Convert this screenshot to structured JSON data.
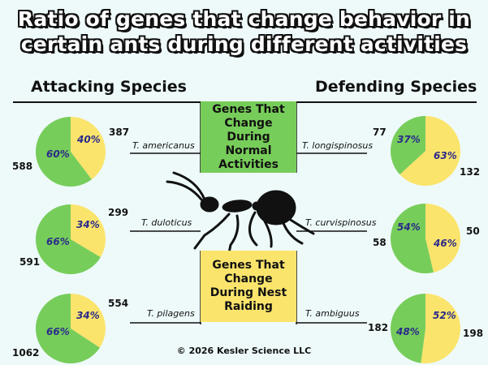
{
  "title_line1": "Ratio of genes that change behavior in",
  "title_line2": "certain ants during different activities",
  "attacking_title": "Attacking Species",
  "defending_title": "Defending Species",
  "box_green_label": "Genes That Change During Normal Activities",
  "box_yellow_label": "Genes That Change During Nest Raiding",
  "footer": "© 2026 Kesler Science LLC",
  "colors": {
    "normal": "#77cd5a",
    "raiding": "#fbe46c",
    "percent_text": "#2a2a8a"
  },
  "chart_data": [
    {
      "type": "pie",
      "group": "Attacking Species",
      "species": "T. americanus",
      "slices": [
        {
          "category": "Genes That Change During Normal Activities",
          "value": 588,
          "percent_label": "60%"
        },
        {
          "category": "Genes That Change During Nest Raiding",
          "value": 387,
          "percent_label": "40%"
        }
      ]
    },
    {
      "type": "pie",
      "group": "Attacking Species",
      "species": "T. duloticus",
      "slices": [
        {
          "category": "Genes That Change During Normal Activities",
          "value": 591,
          "percent_label": "66%"
        },
        {
          "category": "Genes That Change During Nest Raiding",
          "value": 299,
          "percent_label": "34%"
        }
      ]
    },
    {
      "type": "pie",
      "group": "Attacking Species",
      "species": "T. pilagens",
      "slices": [
        {
          "category": "Genes That Change During Normal Activities",
          "value": 1062,
          "percent_label": "66%"
        },
        {
          "category": "Genes That Change During Nest Raiding",
          "value": 554,
          "percent_label": "34%"
        }
      ]
    },
    {
      "type": "pie",
      "group": "Defending Species",
      "species": "T. longispinosus",
      "slices": [
        {
          "category": "Genes That Change During Normal Activities",
          "value": 77,
          "percent_label": "37%"
        },
        {
          "category": "Genes That Change During Nest Raiding",
          "value": 132,
          "percent_label": "63%"
        }
      ]
    },
    {
      "type": "pie",
      "group": "Defending Species",
      "species": "T. curvispinosus",
      "slices": [
        {
          "category": "Genes That Change During Normal Activities",
          "value": 58,
          "percent_label": "54%"
        },
        {
          "category": "Genes That Change During Nest Raiding",
          "value": 50,
          "percent_label": "46%"
        }
      ]
    },
    {
      "type": "pie",
      "group": "Defending Species",
      "species": "T. ambiguus",
      "slices": [
        {
          "category": "Genes That Change During Normal Activities",
          "value": 182,
          "percent_label": "48%"
        },
        {
          "category": "Genes That Change During Nest Raiding",
          "value": 198,
          "percent_label": "52%"
        }
      ]
    }
  ]
}
